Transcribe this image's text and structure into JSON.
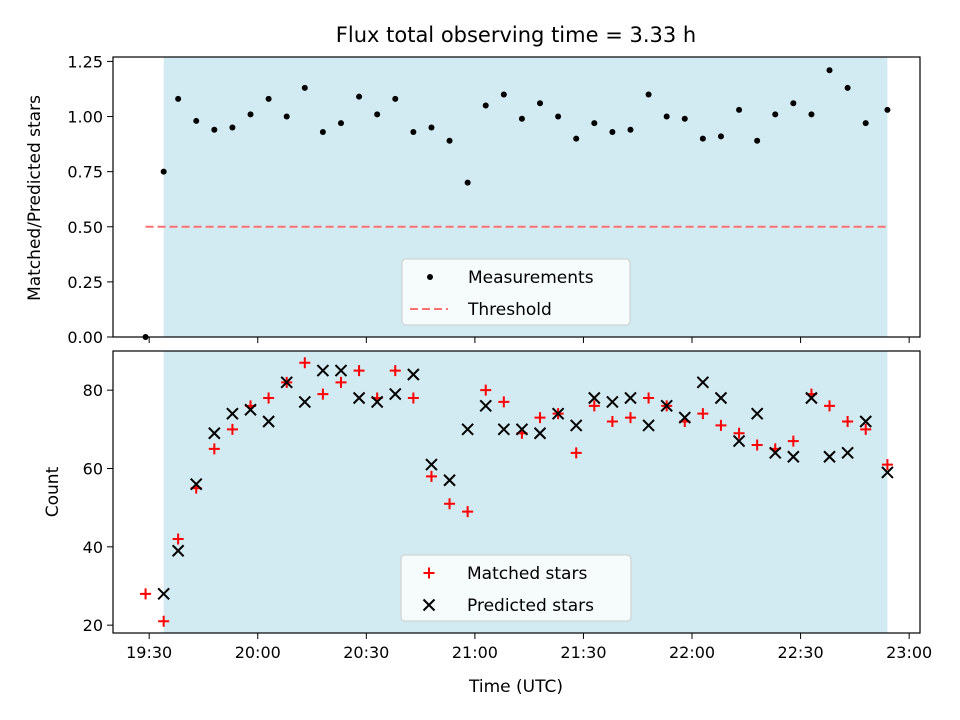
{
  "figure": {
    "title": "Flux total observing time = 3.33 h"
  },
  "chart_data": [
    {
      "type": "scatter",
      "ylabel": "Matched/Predicted stars",
      "xlabel": "",
      "ylim": [
        0.0,
        1.27
      ],
      "y_ticks": [
        "0.00",
        "0.25",
        "0.50",
        "0.75",
        "1.00",
        "1.25"
      ],
      "y_tick_values": [
        0.0,
        0.25,
        0.5,
        0.75,
        1.0,
        1.25
      ],
      "shaded_interval": [
        "19:34",
        "22:54"
      ],
      "shade_color": "#add8e6",
      "legend": [
        "Measurements",
        "Threshold"
      ],
      "legend_position": "bottom-center",
      "series": [
        {
          "name": "Measurements",
          "marker": "dot",
          "color": "#000000",
          "x": [
            "19:29",
            "19:34",
            "19:38",
            "19:43",
            "19:48",
            "19:53",
            "19:58",
            "20:03",
            "20:08",
            "20:13",
            "20:18",
            "20:23",
            "20:28",
            "20:33",
            "20:38",
            "20:43",
            "20:48",
            "20:53",
            "20:58",
            "21:03",
            "21:08",
            "21:13",
            "21:18",
            "21:23",
            "21:28",
            "21:33",
            "21:38",
            "21:43",
            "21:48",
            "21:53",
            "21:58",
            "22:03",
            "22:08",
            "22:13",
            "22:18",
            "22:23",
            "22:28",
            "22:33",
            "22:38",
            "22:43",
            "22:48",
            "22:54"
          ],
          "y": [
            0.0,
            0.75,
            1.08,
            0.98,
            0.94,
            0.95,
            1.01,
            1.08,
            1.0,
            1.13,
            0.93,
            0.97,
            1.09,
            1.01,
            1.08,
            0.93,
            0.95,
            0.89,
            0.7,
            1.05,
            1.1,
            0.99,
            1.06,
            1.0,
            0.9,
            0.97,
            0.93,
            0.94,
            1.1,
            1.0,
            0.99,
            0.9,
            0.91,
            1.03,
            0.89,
            1.01,
            1.06,
            1.01,
            1.21,
            1.13,
            0.97,
            1.03
          ]
        },
        {
          "name": "Threshold",
          "style": "dashed",
          "color": "#ff7070",
          "x": [
            "19:29",
            "22:54"
          ],
          "y": [
            0.5,
            0.5
          ]
        }
      ]
    },
    {
      "type": "scatter",
      "ylabel": "Count",
      "xlabel": "Time (UTC)",
      "ylim": [
        18,
        90
      ],
      "y_ticks": [
        "20",
        "40",
        "60",
        "80"
      ],
      "y_tick_values": [
        20,
        40,
        60,
        80
      ],
      "x_ticks": [
        "19:30",
        "20:00",
        "20:30",
        "21:00",
        "21:30",
        "22:00",
        "22:30",
        "23:00"
      ],
      "x_range": [
        "19:20",
        "23:03"
      ],
      "shaded_interval": [
        "19:34",
        "22:54"
      ],
      "shade_color": "#add8e6",
      "legend": [
        "Matched stars",
        "Predicted stars"
      ],
      "legend_position": "bottom-center",
      "series": [
        {
          "name": "Matched stars",
          "marker": "plus",
          "color": "#ff0000",
          "x": [
            "19:29",
            "19:34",
            "19:38",
            "19:43",
            "19:48",
            "19:53",
            "19:58",
            "20:03",
            "20:08",
            "20:13",
            "20:18",
            "20:23",
            "20:28",
            "20:33",
            "20:38",
            "20:43",
            "20:48",
            "20:53",
            "20:58",
            "21:03",
            "21:08",
            "21:13",
            "21:18",
            "21:23",
            "21:28",
            "21:33",
            "21:38",
            "21:43",
            "21:48",
            "21:53",
            "21:58",
            "22:03",
            "22:08",
            "22:13",
            "22:18",
            "22:23",
            "22:28",
            "22:33",
            "22:38",
            "22:43",
            "22:48",
            "22:54"
          ],
          "y": [
            28,
            21,
            42,
            55,
            65,
            70,
            76,
            78,
            82,
            87,
            79,
            82,
            85,
            78,
            85,
            78,
            58,
            51,
            49,
            80,
            77,
            69,
            73,
            74,
            64,
            76,
            72,
            73,
            78,
            76,
            72,
            74,
            71,
            69,
            66,
            65,
            67,
            79,
            76,
            72,
            70,
            61
          ]
        },
        {
          "name": "Predicted stars",
          "marker": "x",
          "color": "#000000",
          "x": [
            "19:34",
            "19:38",
            "19:43",
            "19:48",
            "19:53",
            "19:58",
            "20:03",
            "20:08",
            "20:13",
            "20:18",
            "20:23",
            "20:28",
            "20:33",
            "20:38",
            "20:43",
            "20:48",
            "20:53",
            "20:58",
            "21:03",
            "21:08",
            "21:13",
            "21:18",
            "21:23",
            "21:28",
            "21:33",
            "21:38",
            "21:43",
            "21:48",
            "21:53",
            "21:58",
            "22:03",
            "22:08",
            "22:13",
            "22:18",
            "22:23",
            "22:28",
            "22:33",
            "22:38",
            "22:43",
            "22:48",
            "22:54"
          ],
          "y": [
            28,
            39,
            56,
            69,
            74,
            75,
            72,
            82,
            77,
            85,
            85,
            78,
            77,
            79,
            84,
            61,
            57,
            70,
            76,
            70,
            70,
            69,
            74,
            71,
            78,
            77,
            78,
            71,
            76,
            73,
            82,
            78,
            67,
            74,
            64,
            63,
            78,
            63,
            64,
            72,
            59
          ]
        }
      ]
    }
  ]
}
